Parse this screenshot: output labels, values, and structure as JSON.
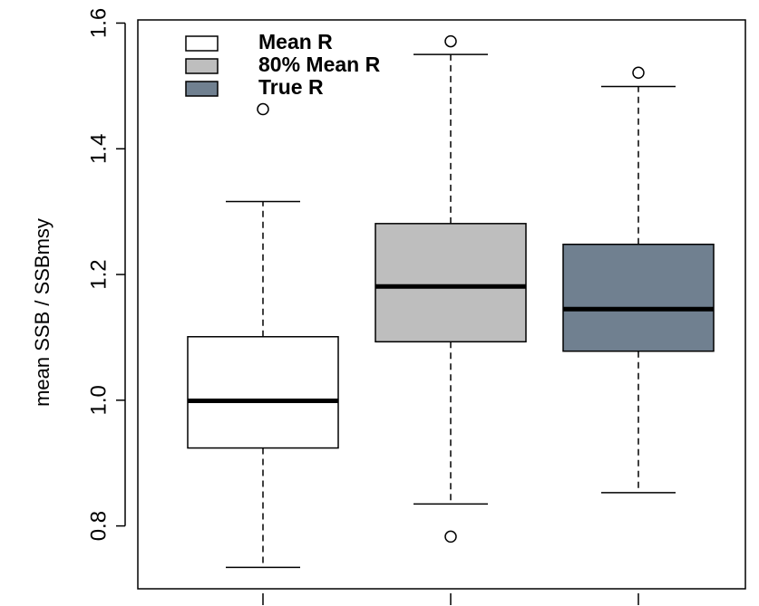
{
  "chart_data": {
    "type": "box",
    "y_label": "mean SSB / SSBmsy",
    "ylim": [
      0.7,
      1.605
    ],
    "yticks": [
      0.8,
      {
        "value": 1,
        "label": "1.0"
      },
      1.2,
      1.4,
      1.6
    ],
    "series": [
      {
        "name": "Mean R",
        "color": "#ffffff",
        "whisker_low": 0.734,
        "q1": 0.924,
        "median": 0.999,
        "q3": 1.101,
        "whisker_high": 1.316,
        "outliers": [
          1.463
        ]
      },
      {
        "name": "80% Mean R",
        "color": "#bebebe",
        "whisker_low": 0.835,
        "q1": 1.093,
        "median": 1.181,
        "q3": 1.281,
        "whisker_high": 1.55,
        "outliers": [
          1.571,
          0.783
        ]
      },
      {
        "name": "True R",
        "color": "#708090",
        "whisker_low": 0.853,
        "q1": 1.078,
        "median": 1.145,
        "q3": 1.248,
        "whisker_high": 1.499,
        "outliers": [
          1.521
        ]
      }
    ]
  }
}
